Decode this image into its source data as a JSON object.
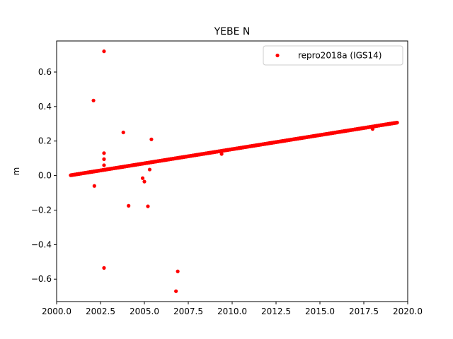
{
  "chart_data": {
    "type": "scatter",
    "title": "YEBE N",
    "xlabel": "",
    "ylabel": "m",
    "xlim": [
      2000.0,
      2020.0
    ],
    "ylim": [
      -0.73,
      0.78
    ],
    "xticks": [
      "2000.0",
      "2002.5",
      "2005.0",
      "2007.5",
      "2010.0",
      "2012.5",
      "2015.0",
      "2017.5",
      "2020.0"
    ],
    "yticks": [
      "−0.6",
      "−0.4",
      "−0.2",
      "0.0",
      "0.2",
      "0.4",
      "0.6"
    ],
    "grid": false,
    "legend": "top-right",
    "series": [
      {
        "name": "repro2018a (IGS14)",
        "color": "#ff0000",
        "marker": "dot",
        "trend": {
          "x_start": 2000.8,
          "y_start": 0.002,
          "x_end": 2019.4,
          "y_end": 0.307,
          "approx_points_per_year": 60
        },
        "outliers": [
          {
            "x": 2002.7,
            "y": 0.72
          },
          {
            "x": 2002.1,
            "y": 0.435
          },
          {
            "x": 2003.8,
            "y": 0.25
          },
          {
            "x": 2005.4,
            "y": 0.21
          },
          {
            "x": 2002.7,
            "y": 0.13
          },
          {
            "x": 2002.7,
            "y": 0.095
          },
          {
            "x": 2002.7,
            "y": 0.06
          },
          {
            "x": 2005.3,
            "y": 0.035
          },
          {
            "x": 2004.9,
            "y": -0.015
          },
          {
            "x": 2005.0,
            "y": -0.035
          },
          {
            "x": 2002.15,
            "y": -0.06
          },
          {
            "x": 2004.1,
            "y": -0.175
          },
          {
            "x": 2005.2,
            "y": -0.178
          },
          {
            "x": 2002.7,
            "y": -0.535
          },
          {
            "x": 2006.9,
            "y": -0.555
          },
          {
            "x": 2006.8,
            "y": -0.67
          },
          {
            "x": 2009.4,
            "y": 0.125
          },
          {
            "x": 2018.0,
            "y": 0.27
          }
        ]
      }
    ]
  }
}
